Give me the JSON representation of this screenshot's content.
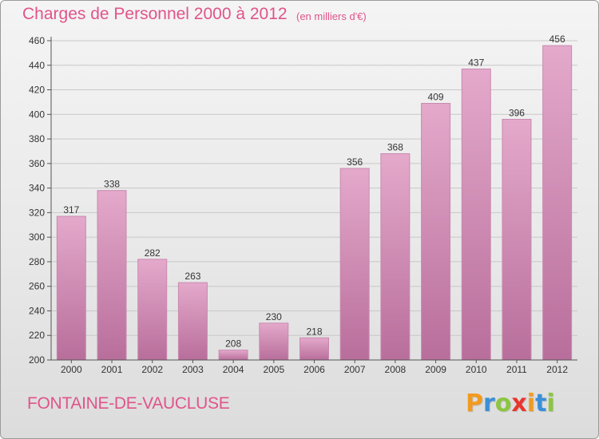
{
  "header": {
    "title": "Charges de Personnel 2000 à 2012",
    "subtitle": "(en milliers d'€)"
  },
  "footer": {
    "commune": "FONTAINE-DE-VAUCLUSE",
    "logo": [
      "P",
      "r",
      "o",
      "x",
      "i",
      "t",
      "i"
    ],
    "logo_colors": [
      "#f29a1f",
      "#3a8fd8",
      "#8cc63f",
      "#e8362d",
      "#f29a1f",
      "#3a8fd8",
      "#8cc63f"
    ]
  },
  "colors": {
    "bar_light": "#e4a9cb",
    "bar_dark": "#b86e9b",
    "bar_edge": "#c98ab0",
    "title": "#e0548a"
  },
  "chart_data": {
    "type": "bar",
    "title": "Charges de Personnel 2000 à 2012",
    "subtitle": "(en milliers d'€)",
    "categories": [
      "2000",
      "2001",
      "2002",
      "2003",
      "2004",
      "2005",
      "2006",
      "2007",
      "2008",
      "2009",
      "2010",
      "2011",
      "2012"
    ],
    "values": [
      317,
      338,
      282,
      263,
      208,
      230,
      218,
      356,
      368,
      409,
      437,
      396,
      456
    ],
    "ylim": [
      200,
      460
    ],
    "yticks": [
      200,
      220,
      240,
      260,
      280,
      300,
      320,
      340,
      360,
      380,
      400,
      420,
      440,
      460
    ],
    "grid": true,
    "legend": "none"
  }
}
